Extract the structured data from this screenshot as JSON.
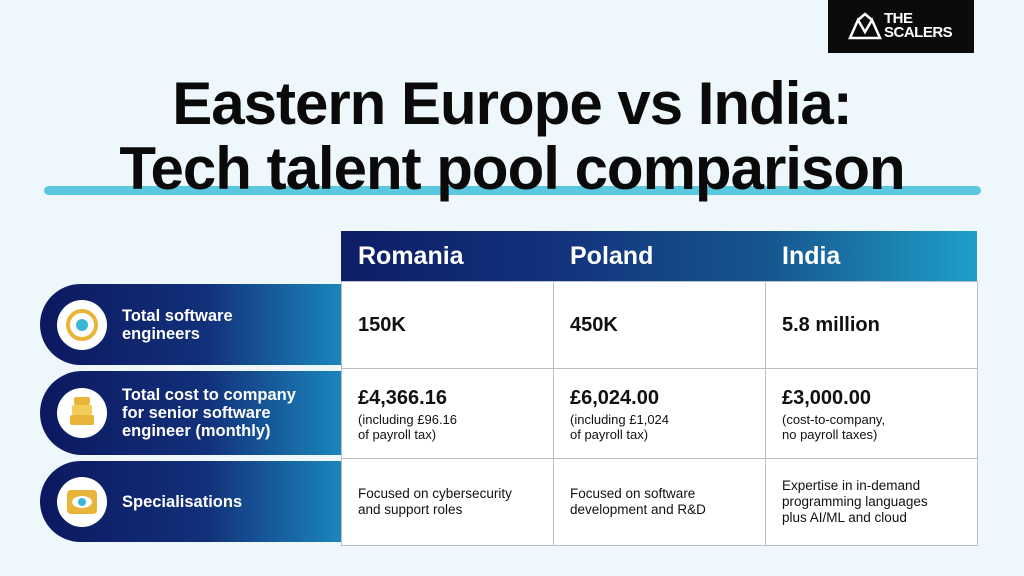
{
  "brand": {
    "line1": "THE",
    "line2": "SCALERS"
  },
  "header": {
    "title_lines": [
      "Eastern Europe vs India:",
      "Tech talent pool comparison"
    ]
  },
  "table": {
    "columns": [
      "Romania",
      "Poland",
      "India"
    ],
    "rows": [
      {
        "label": [
          "Total software",
          "engineers"
        ],
        "cells": [
          {
            "main": "150K"
          },
          {
            "main": "450K"
          },
          {
            "main": "5.8 million"
          }
        ]
      },
      {
        "label": [
          "Total cost to company",
          "for senior software",
          "engineer (monthly)"
        ],
        "cells": [
          {
            "main": "£4,366.16",
            "note": [
              "(including £96.16",
              "of payroll tax)"
            ]
          },
          {
            "main": "£6,024.00",
            "note": [
              "(including £1,024",
              "of payroll tax)"
            ]
          },
          {
            "main": "£3,000.00",
            "note": [
              "(cost-to-company,",
              "no payroll taxes)"
            ]
          }
        ]
      },
      {
        "label": [
          "Specialisations"
        ],
        "cells": [
          {
            "text": [
              "Focused on cybersecurity",
              "and support roles"
            ]
          },
          {
            "text": [
              "Focused on software",
              "development and R&D"
            ]
          },
          {
            "text": [
              "Expertise in in-demand",
              "programming languages",
              "plus AI/ML and cloud"
            ]
          }
        ]
      }
    ]
  }
}
